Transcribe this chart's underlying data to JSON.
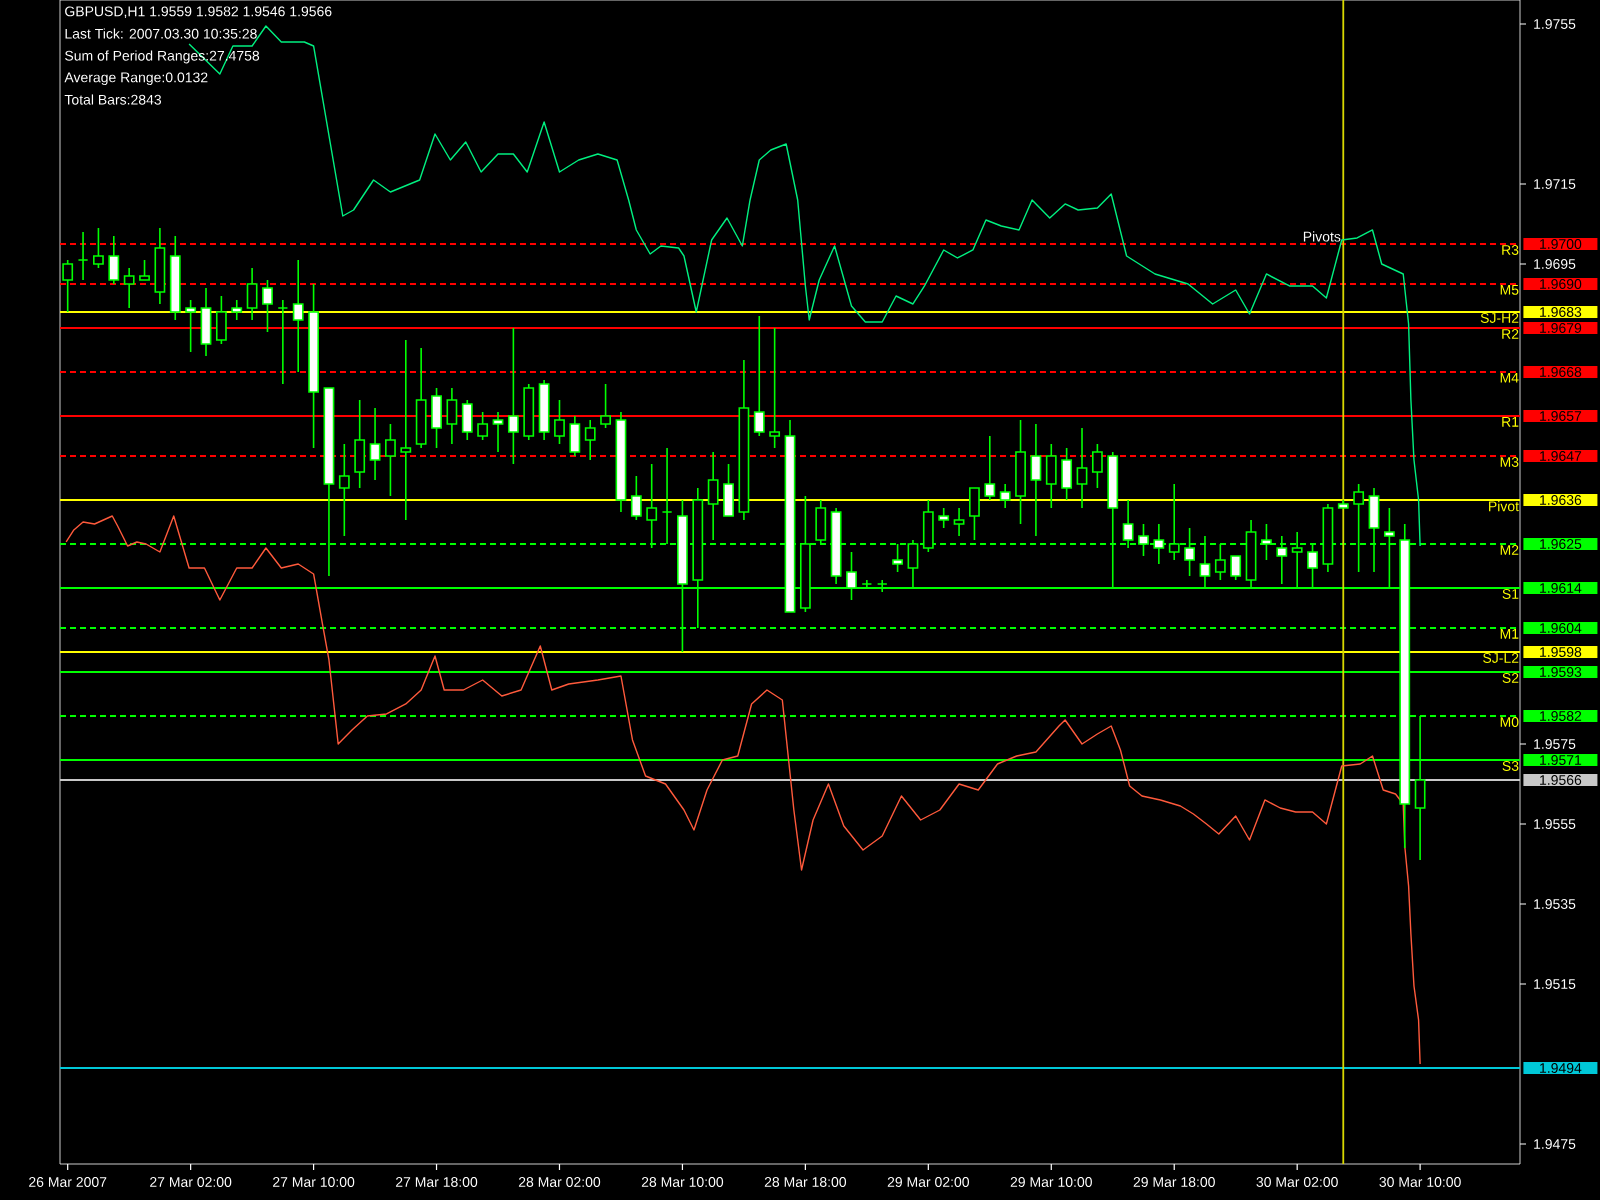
{
  "chart_data": {
    "type": "candlestick",
    "title": "GBPUSD,H1  1.9559 1.9582 1.9546 1.9566",
    "annotations": [
      "Last Tick: 2007.03.30 10:35:28",
      "Sum of Period Ranges:27.4758",
      "Average Range:0.0132",
      "Total Bars:2843"
    ],
    "xlim": [
      "2007-03-26T17:30",
      "2007-03-30T16:30"
    ],
    "xticks": [
      {
        "value": "2007-03-26T18:00",
        "label": "26 Mar 2007"
      },
      {
        "value": "2007-03-27T02:00",
        "label": "27 Mar 02:00"
      },
      {
        "value": "2007-03-27T10:00",
        "label": "27 Mar 10:00"
      },
      {
        "value": "2007-03-27T18:00",
        "label": "27 Mar 18:00"
      },
      {
        "value": "2007-03-28T02:00",
        "label": "28 Mar 02:00"
      },
      {
        "value": "2007-03-28T10:00",
        "label": "28 Mar 10:00"
      },
      {
        "value": "2007-03-28T18:00",
        "label": "28 Mar 18:00"
      },
      {
        "value": "2007-03-29T02:00",
        "label": "29 Mar 02:00"
      },
      {
        "value": "2007-03-29T10:00",
        "label": "29 Mar 10:00"
      },
      {
        "value": "2007-03-29T18:00",
        "label": "29 Mar 18:00"
      },
      {
        "value": "2007-03-30T02:00",
        "label": "30 Mar 02:00"
      },
      {
        "value": "2007-03-30T10:00",
        "label": "30 Mar 10:00"
      }
    ],
    "ylim": [
      1.947,
      1.9761
    ],
    "yticks": [
      1.9475,
      1.9515,
      1.9535,
      1.9555,
      1.9575,
      1.9695,
      1.9715,
      1.9755
    ],
    "y2lim": [
      1.947,
      1.9761
    ],
    "y2ticks": [
      {
        "value": 1.97,
        "label": "1.9700"
      },
      {
        "value": 1.969,
        "label": "1.9690"
      },
      1.9683,
      1.9679,
      1.9668,
      1.9657,
      1.9647,
      1.9636,
      1.9625,
      1.9614,
      1.9604,
      1.9598,
      1.9593,
      1.9582,
      1.9571,
      1.9566,
      1.9494
    ],
    "ref_lines": [
      {
        "axis": "y",
        "value": 1.97,
        "label": "R3",
        "color": "#ff0000",
        "line_style": "dashed"
      },
      {
        "axis": "y",
        "value": 1.969,
        "label": "M5",
        "color": "#ff0000",
        "line_style": "dashed"
      },
      {
        "axis": "y",
        "value": 1.9683,
        "label": "SJ-H2",
        "color": "#ffff00"
      },
      {
        "axis": "y",
        "value": 1.9679,
        "label": "R2",
        "color": "#ff0000"
      },
      {
        "axis": "y",
        "value": 1.9668,
        "label": "M4",
        "color": "#ff0000",
        "line_style": "dashed"
      },
      {
        "axis": "y",
        "value": 1.9657,
        "label": "R1",
        "color": "#ff0000"
      },
      {
        "axis": "y",
        "value": 1.9647,
        "label": "M3",
        "color": "#ff0000",
        "line_style": "dashed"
      },
      {
        "axis": "y",
        "value": 1.9636,
        "label": "Pivot",
        "color": "#ffff00"
      },
      {
        "axis": "y",
        "value": 1.9625,
        "label": "M2",
        "color": "#00ff00",
        "line_style": "dashed"
      },
      {
        "axis": "y",
        "value": 1.9614,
        "label": "S1",
        "color": "#00ff00"
      },
      {
        "axis": "y",
        "value": 1.9604,
        "label": "M1",
        "color": "#00ff00",
        "line_style": "dashed"
      },
      {
        "axis": "y",
        "value": 1.9598,
        "label": "SJ-L2",
        "color": "#ffff00"
      },
      {
        "axis": "y",
        "value": 1.9593,
        "label": "S2",
        "color": "#00ff00"
      },
      {
        "axis": "y",
        "value": 1.9582,
        "label": "M0",
        "color": "#00ff00",
        "line_style": "dashed"
      },
      {
        "axis": "y",
        "value": 1.9571,
        "label": "S3",
        "color": "#00ff00"
      },
      {
        "axis": "y",
        "value": 1.9566,
        "color": "#c8c8c8"
      },
      {
        "axis": "y",
        "value": 1.9494,
        "color": "#00c8d8"
      },
      {
        "axis": "x",
        "value": "2007-03-30T05:00",
        "label": "Pivots",
        "color": "#d8d800"
      }
    ],
    "series": [
      {
        "type": "candlestick",
        "color": "#00ff00",
        "x": [
          "2007-03-26T18:00",
          "2007-03-26T19:00",
          "2007-03-26T20:00",
          "2007-03-26T21:00",
          "2007-03-26T22:00",
          "2007-03-26T23:00",
          "2007-03-27T00:00",
          "2007-03-27T01:00",
          "2007-03-27T02:00",
          "2007-03-27T03:00",
          "2007-03-27T04:00",
          "2007-03-27T05:00",
          "2007-03-27T06:00",
          "2007-03-27T07:00",
          "2007-03-27T08:00",
          "2007-03-27T09:00",
          "2007-03-27T10:00",
          "2007-03-27T11:00",
          "2007-03-27T12:00",
          "2007-03-27T13:00",
          "2007-03-27T14:00",
          "2007-03-27T15:00",
          "2007-03-27T16:00",
          "2007-03-27T17:00",
          "2007-03-27T18:00",
          "2007-03-27T19:00",
          "2007-03-27T20:00",
          "2007-03-27T21:00",
          "2007-03-27T22:00",
          "2007-03-27T23:00",
          "2007-03-28T00:00",
          "2007-03-28T01:00",
          "2007-03-28T02:00",
          "2007-03-28T03:00",
          "2007-03-28T04:00",
          "2007-03-28T05:00",
          "2007-03-28T06:00",
          "2007-03-28T07:00",
          "2007-03-28T08:00",
          "2007-03-28T09:00",
          "2007-03-28T10:00",
          "2007-03-28T11:00",
          "2007-03-28T12:00",
          "2007-03-28T13:00",
          "2007-03-28T14:00",
          "2007-03-28T15:00",
          "2007-03-28T16:00",
          "2007-03-28T17:00",
          "2007-03-28T18:00",
          "2007-03-28T19:00",
          "2007-03-28T20:00",
          "2007-03-28T21:00",
          "2007-03-28T22:00",
          "2007-03-28T23:00",
          "2007-03-29T00:00",
          "2007-03-29T01:00",
          "2007-03-29T02:00",
          "2007-03-29T03:00",
          "2007-03-29T04:00",
          "2007-03-29T05:00",
          "2007-03-29T06:00",
          "2007-03-29T07:00",
          "2007-03-29T08:00",
          "2007-03-29T09:00",
          "2007-03-29T10:00",
          "2007-03-29T11:00",
          "2007-03-29T12:00",
          "2007-03-29T13:00",
          "2007-03-29T14:00",
          "2007-03-29T15:00",
          "2007-03-29T16:00",
          "2007-03-29T17:00",
          "2007-03-29T18:00",
          "2007-03-29T19:00",
          "2007-03-29T20:00",
          "2007-03-29T21:00",
          "2007-03-29T22:00",
          "2007-03-29T23:00",
          "2007-03-30T00:00",
          "2007-03-30T01:00",
          "2007-03-30T02:00",
          "2007-03-30T03:00",
          "2007-03-30T04:00",
          "2007-03-30T05:00",
          "2007-03-30T06:00",
          "2007-03-30T07:00",
          "2007-03-30T08:00",
          "2007-03-30T09:00",
          "2007-03-30T10:00"
        ],
        "ohlc": [
          [
            1.9691,
            1.9696,
            1.9683,
            1.9695
          ],
          [
            1.9696,
            1.9703,
            1.9691,
            1.9696
          ],
          [
            1.9695,
            1.9704,
            1.9694,
            1.9697
          ],
          [
            1.9697,
            1.9702,
            1.969,
            1.9691
          ],
          [
            1.969,
            1.9694,
            1.9684,
            1.9692
          ],
          [
            1.9691,
            1.9696,
            1.9691,
            1.9692
          ],
          [
            1.9688,
            1.9704,
            1.9685,
            1.9699
          ],
          [
            1.9697,
            1.9702,
            1.9681,
            1.9683
          ],
          [
            1.9684,
            1.9686,
            1.9673,
            1.9683
          ],
          [
            1.9684,
            1.9689,
            1.9672,
            1.9675
          ],
          [
            1.9676,
            1.9687,
            1.9675,
            1.9683
          ],
          [
            1.9684,
            1.9686,
            1.9681,
            1.9683
          ],
          [
            1.9684,
            1.9694,
            1.9681,
            1.969
          ],
          [
            1.9689,
            1.9691,
            1.9678,
            1.9685
          ],
          [
            1.9684,
            1.9686,
            1.9665,
            1.9684
          ],
          [
            1.9685,
            1.9696,
            1.9668,
            1.9681
          ],
          [
            1.9683,
            1.969,
            1.9649,
            1.9663
          ],
          [
            1.9664,
            1.9664,
            1.9617,
            1.964
          ],
          [
            1.9639,
            1.965,
            1.9627,
            1.9642
          ],
          [
            1.9643,
            1.9661,
            1.9639,
            1.9651
          ],
          [
            1.965,
            1.9659,
            1.9641,
            1.9646
          ],
          [
            1.9647,
            1.9655,
            1.9637,
            1.9651
          ],
          [
            1.9648,
            1.9676,
            1.9631,
            1.9649
          ],
          [
            1.965,
            1.9674,
            1.9649,
            1.9661
          ],
          [
            1.9662,
            1.9664,
            1.9649,
            1.9654
          ],
          [
            1.9655,
            1.9664,
            1.965,
            1.9661
          ],
          [
            1.966,
            1.9661,
            1.9651,
            1.9653
          ],
          [
            1.9652,
            1.9658,
            1.9651,
            1.9655
          ],
          [
            1.9656,
            1.9658,
            1.9648,
            1.9655
          ],
          [
            1.9657,
            1.9679,
            1.9645,
            1.9653
          ],
          [
            1.9652,
            1.9665,
            1.9651,
            1.9664
          ],
          [
            1.9665,
            1.9666,
            1.9651,
            1.9653
          ],
          [
            1.9652,
            1.9661,
            1.965,
            1.9656
          ],
          [
            1.9655,
            1.9657,
            1.9647,
            1.9648
          ],
          [
            1.9651,
            1.9656,
            1.9646,
            1.9654
          ],
          [
            1.9655,
            1.9665,
            1.9654,
            1.9657
          ],
          [
            1.9656,
            1.9658,
            1.9633,
            1.9636
          ],
          [
            1.9637,
            1.9642,
            1.9631,
            1.9632
          ],
          [
            1.9631,
            1.9645,
            1.9624,
            1.9634
          ],
          [
            1.9633,
            1.9649,
            1.9625,
            1.9633
          ],
          [
            1.9632,
            1.9636,
            1.9598,
            1.9615
          ],
          [
            1.9616,
            1.9639,
            1.9604,
            1.9636
          ],
          [
            1.9635,
            1.9648,
            1.9626,
            1.9641
          ],
          [
            1.964,
            1.9645,
            1.9632,
            1.9632
          ],
          [
            1.9633,
            1.9671,
            1.9631,
            1.9659
          ],
          [
            1.9658,
            1.9682,
            1.9652,
            1.9653
          ],
          [
            1.9652,
            1.9679,
            1.9649,
            1.9653
          ],
          [
            1.9652,
            1.9656,
            1.9608,
            1.9608
          ],
          [
            1.9609,
            1.9637,
            1.9608,
            1.9625
          ],
          [
            1.9626,
            1.9636,
            1.9625,
            1.9634
          ],
          [
            1.9633,
            1.9634,
            1.9615,
            1.9617
          ],
          [
            1.9618,
            1.9623,
            1.9611,
            1.9614
          ],
          [
            1.9615,
            1.9616,
            1.9614,
            1.9615
          ],
          [
            1.9615,
            1.9616,
            1.9613,
            1.9615
          ],
          [
            1.9621,
            1.9625,
            1.9618,
            1.962
          ],
          [
            1.9619,
            1.9626,
            1.9614,
            1.9625
          ],
          [
            1.9624,
            1.9636,
            1.9623,
            1.9633
          ],
          [
            1.9632,
            1.9634,
            1.9629,
            1.9631
          ],
          [
            1.963,
            1.9634,
            1.9627,
            1.9631
          ],
          [
            1.9632,
            1.9639,
            1.9626,
            1.9639
          ],
          [
            1.964,
            1.9652,
            1.9636,
            1.9637
          ],
          [
            1.9638,
            1.964,
            1.9634,
            1.9636
          ],
          [
            1.9637,
            1.9656,
            1.963,
            1.9648
          ],
          [
            1.9647,
            1.9655,
            1.9627,
            1.9641
          ],
          [
            1.964,
            1.965,
            1.9634,
            1.9647
          ],
          [
            1.9646,
            1.9649,
            1.9636,
            1.9639
          ],
          [
            1.964,
            1.9654,
            1.9634,
            1.9644
          ],
          [
            1.9643,
            1.965,
            1.9639,
            1.9648
          ],
          [
            1.9647,
            1.9648,
            1.9614,
            1.9634
          ],
          [
            1.963,
            1.9636,
            1.9624,
            1.9626
          ],
          [
            1.9627,
            1.963,
            1.9622,
            1.9625
          ],
          [
            1.9626,
            1.963,
            1.962,
            1.9624
          ],
          [
            1.9623,
            1.964,
            1.9621,
            1.9625
          ],
          [
            1.9624,
            1.9629,
            1.9617,
            1.9621
          ],
          [
            1.962,
            1.9627,
            1.9614,
            1.9617
          ],
          [
            1.9618,
            1.9625,
            1.9616,
            1.9621
          ],
          [
            1.9622,
            1.9622,
            1.9616,
            1.9617
          ],
          [
            1.9616,
            1.9631,
            1.9614,
            1.9628
          ],
          [
            1.9626,
            1.963,
            1.9621,
            1.9625
          ],
          [
            1.9624,
            1.9627,
            1.9615,
            1.9622
          ],
          [
            1.9623,
            1.9628,
            1.9614,
            1.9624
          ],
          [
            1.9623,
            1.9625,
            1.9614,
            1.9619
          ],
          [
            1.962,
            1.9635,
            1.9618,
            1.9634
          ],
          [
            1.9635,
            1.9636,
            1.9634,
            1.9634
          ],
          [
            1.9635,
            1.964,
            1.9618,
            1.9638
          ],
          [
            1.9637,
            1.9639,
            1.9618,
            1.9629
          ],
          [
            1.9628,
            1.9634,
            1.9614,
            1.9627
          ],
          [
            1.9626,
            1.963,
            1.9549,
            1.956
          ],
          [
            1.9559,
            1.9582,
            1.9546,
            1.9566
          ]
        ]
      },
      {
        "type": "line",
        "color": "#00f080",
        "x": [
          "2007-03-27T01:54",
          "2007-03-27T03:54",
          "2007-03-27T04:45",
          "2007-03-27T06:00",
          "2007-03-27T06:54",
          "2007-03-27T07:54",
          "2007-03-27T09:24",
          "2007-03-27T10:00",
          "2007-03-27T11:54",
          "2007-03-27T12:36",
          "2007-03-27T13:54",
          "2007-03-27T15:00",
          "2007-03-27T16:54",
          "2007-03-27T17:54",
          "2007-03-27T18:54",
          "2007-03-27T19:54",
          "2007-03-27T20:54",
          "2007-03-27T22:00",
          "2007-03-27T23:00",
          "2007-03-27T23:54",
          "2007-03-28T01:00",
          "2007-03-28T02:00",
          "2007-03-28T03:15",
          "2007-03-28T04:30",
          "2007-03-28T05:45",
          "2007-03-28T06:30",
          "2007-03-28T07:00",
          "2007-03-28T07:54",
          "2007-03-28T08:36",
          "2007-03-28T09:45",
          "2007-03-28T10:06",
          "2007-03-28T10:54",
          "2007-03-28T11:54",
          "2007-03-28T12:54",
          "2007-03-28T13:54",
          "2007-03-28T14:24",
          "2007-03-28T15:00",
          "2007-03-28T15:45",
          "2007-03-28T16:45",
          "2007-03-28T17:30",
          "2007-03-28T18:00",
          "2007-03-28T18:15",
          "2007-03-28T18:54",
          "2007-03-28T19:54",
          "2007-03-28T21:00",
          "2007-03-28T21:54",
          "2007-03-28T23:00",
          "2007-03-28T23:54",
          "2007-03-29T01:00",
          "2007-03-29T01:45",
          "2007-03-29T03:00",
          "2007-03-29T03:54",
          "2007-03-29T04:54",
          "2007-03-29T05:45",
          "2007-03-29T06:45",
          "2007-03-29T07:54",
          "2007-03-29T08:45",
          "2007-03-29T09:54",
          "2007-03-29T10:54",
          "2007-03-29T11:45",
          "2007-03-29T13:00",
          "2007-03-29T13:54",
          "2007-03-29T14:54",
          "2007-03-29T16:45",
          "2007-03-29T18:54",
          "2007-03-29T20:30",
          "2007-03-29T22:00",
          "2007-03-29T22:54",
          "2007-03-30T00:00",
          "2007-03-30T01:30",
          "2007-03-30T03:00",
          "2007-03-30T03:54",
          "2007-03-30T04:54",
          "2007-03-30T05:54",
          "2007-03-30T06:54",
          "2007-03-30T07:30",
          "2007-03-30T08:54",
          "2007-03-30T09:15",
          "2007-03-30T09:24",
          "2007-03-30T09:36",
          "2007-03-30T09:54",
          "2007-03-30T10:00"
        ],
        "values": [
          1.975,
          1.97425,
          1.97495,
          1.97495,
          1.97545,
          1.97505,
          1.97505,
          1.97495,
          1.9707,
          1.97085,
          1.9716,
          1.9713,
          1.9716,
          1.97275,
          1.9721,
          1.97255,
          1.9718,
          1.97225,
          1.97225,
          1.9718,
          1.97305,
          1.9718,
          1.9721,
          1.97225,
          1.9721,
          1.9711,
          1.97035,
          1.96975,
          1.96995,
          1.9699,
          1.9697,
          1.9683,
          1.9701,
          1.97065,
          1.96995,
          1.9711,
          1.9721,
          1.97235,
          1.9725,
          1.9711,
          1.96895,
          1.9681,
          1.9691,
          1.96995,
          1.96845,
          1.96805,
          1.96805,
          1.9687,
          1.9685,
          1.96895,
          1.96985,
          1.96965,
          1.96985,
          1.9706,
          1.97045,
          1.97035,
          1.9711,
          1.97065,
          1.971,
          1.97085,
          1.9709,
          1.97125,
          1.9697,
          1.96925,
          1.969,
          1.9685,
          1.96885,
          1.96825,
          1.96925,
          1.96895,
          1.96895,
          1.96865,
          1.9701,
          1.97015,
          1.97035,
          1.9695,
          1.96925,
          1.968,
          1.9661,
          1.9646,
          1.9636,
          1.96245
        ]
      },
      {
        "type": "line",
        "color": "#ff5a3c",
        "x": [
          "2007-03-26T17:54",
          "2007-03-26T18:24",
          "2007-03-26T19:00",
          "2007-03-26T19:45",
          "2007-03-26T20:54",
          "2007-03-26T21:15",
          "2007-03-26T21:54",
          "2007-03-26T22:30",
          "2007-03-26T23:06",
          "2007-03-27T00:00",
          "2007-03-27T00:54",
          "2007-03-27T01:54",
          "2007-03-27T02:54",
          "2007-03-27T03:54",
          "2007-03-27T05:00",
          "2007-03-27T06:00",
          "2007-03-27T06:54",
          "2007-03-27T07:54",
          "2007-03-27T09:00",
          "2007-03-27T10:00",
          "2007-03-27T10:36",
          "2007-03-27T11:00",
          "2007-03-27T11:36",
          "2007-03-27T12:30",
          "2007-03-27T13:30",
          "2007-03-27T14:45",
          "2007-03-27T16:00",
          "2007-03-27T17:00",
          "2007-03-27T17:54",
          "2007-03-27T18:30",
          "2007-03-27T19:45",
          "2007-03-27T21:00",
          "2007-03-27T22:15",
          "2007-03-27T23:30",
          "2007-03-28T00:45",
          "2007-03-28T01:30",
          "2007-03-28T02:36",
          "2007-03-28T04:30",
          "2007-03-28T06:00",
          "2007-03-28T06:45",
          "2007-03-28T07:36",
          "2007-03-28T08:54",
          "2007-03-28T10:06",
          "2007-03-28T10:45",
          "2007-03-28T11:36",
          "2007-03-28T12:36",
          "2007-03-28T13:36",
          "2007-03-28T14:30",
          "2007-03-28T15:30",
          "2007-03-28T16:30",
          "2007-03-28T17:15",
          "2007-03-28T17:45",
          "2007-03-28T18:30",
          "2007-03-28T19:30",
          "2007-03-28T20:30",
          "2007-03-28T21:45",
          "2007-03-28T23:00",
          "2007-03-29T00:15",
          "2007-03-29T01:30",
          "2007-03-29T02:45",
          "2007-03-29T04:00",
          "2007-03-29T05:15",
          "2007-03-29T06:30",
          "2007-03-29T07:45",
          "2007-03-29T09:00",
          "2007-03-29T10:30",
          "2007-03-29T10:54",
          "2007-03-29T12:00",
          "2007-03-29T13:00",
          "2007-03-29T13:54",
          "2007-03-29T14:30",
          "2007-03-29T15:06",
          "2007-03-29T15:54",
          "2007-03-29T17:06",
          "2007-03-29T18:24",
          "2007-03-29T19:15",
          "2007-03-29T20:06",
          "2007-03-29T20:54",
          "2007-03-29T22:00",
          "2007-03-29T22:54",
          "2007-03-29T23:54",
          "2007-03-30T00:54",
          "2007-03-30T01:54",
          "2007-03-30T03:00",
          "2007-03-30T03:54",
          "2007-03-30T04:54",
          "2007-03-30T06:06",
          "2007-03-30T06:54",
          "2007-03-30T07:36",
          "2007-03-30T08:24",
          "2007-03-30T08:54",
          "2007-03-30T09:00",
          "2007-03-30T09:15",
          "2007-03-30T09:24",
          "2007-03-30T09:36",
          "2007-03-30T09:54",
          "2007-03-30T10:00"
        ],
        "values": [
          1.96255,
          1.96285,
          1.96305,
          1.963,
          1.9632,
          1.96295,
          1.96245,
          1.96255,
          1.9625,
          1.9623,
          1.9632,
          1.9619,
          1.9619,
          1.9611,
          1.9619,
          1.9619,
          1.9624,
          1.9619,
          1.962,
          1.96175,
          1.96045,
          1.9596,
          1.9575,
          1.95785,
          1.9582,
          1.95825,
          1.9585,
          1.95885,
          1.9597,
          1.95885,
          1.95885,
          1.9591,
          1.9587,
          1.95885,
          1.95995,
          1.95885,
          1.959,
          1.9591,
          1.9592,
          1.9576,
          1.9567,
          1.9565,
          1.95585,
          1.95535,
          1.95635,
          1.9571,
          1.9572,
          1.9585,
          1.95885,
          1.9586,
          1.95585,
          1.95435,
          1.9556,
          1.9565,
          1.95545,
          1.95485,
          1.9552,
          1.9562,
          1.9556,
          1.95585,
          1.9565,
          1.95635,
          1.957,
          1.9572,
          1.9573,
          1.95795,
          1.9581,
          1.9575,
          1.95775,
          1.95795,
          1.95735,
          1.95645,
          1.9562,
          1.9561,
          1.95595,
          1.95575,
          1.9555,
          1.95525,
          1.9557,
          1.9551,
          1.9561,
          1.9559,
          1.9558,
          1.9558,
          1.9555,
          1.95695,
          1.957,
          1.9572,
          1.95635,
          1.95625,
          1.956,
          1.95495,
          1.95395,
          1.95275,
          1.95145,
          1.9506,
          1.9495
        ]
      }
    ]
  }
}
